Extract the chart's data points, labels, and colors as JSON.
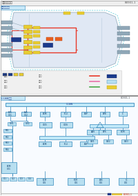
{
  "bg_color": "#ffffff",
  "wire_red": "#e83828",
  "wire_cyan": "#50c8d8",
  "wire_yellow": "#e8cc30",
  "wire_blue": "#1a3a8c",
  "wire_green": "#48a848",
  "wire_pink": "#e870a8",
  "wire_purple": "#a060c0",
  "node_fill": "#b8dff0",
  "node_border": "#3388bb",
  "bus_fill": "#c0e8f8",
  "bus_border": "#3388bb",
  "gray_connector": "#90a8b8",
  "gray_connector_border": "#607888",
  "dark_connector": "#304878",
  "header_text": "零部件位置图",
  "header_code": "B0901-1",
  "upper_label": "元器件位置图",
  "lower_label": "C-CAN总线",
  "lower_code": "B0901-1",
  "footer_code": "B0901-1"
}
